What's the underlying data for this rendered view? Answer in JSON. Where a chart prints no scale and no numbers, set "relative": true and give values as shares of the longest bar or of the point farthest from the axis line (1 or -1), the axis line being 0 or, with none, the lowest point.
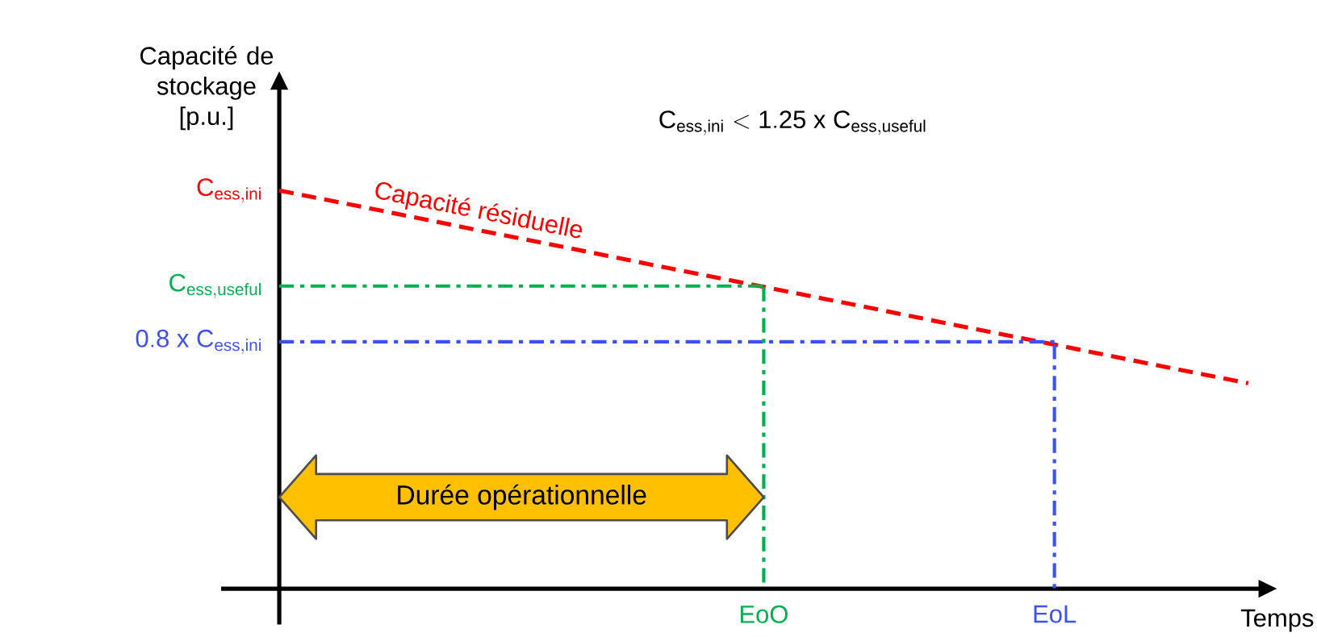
{
  "chart_data": {
    "type": "line",
    "relative": true,
    "title": "\\mathrm{C_{ess,ini} < 1.25\\ x\\ C_{ess,useful}}",
    "xlabel": "Temps",
    "ylabel": "Capacité de stockage [p.u.]",
    "categories": [
      null,
      null,
      null,
      null,
      null,
      "EoO",
      null,
      null,
      "EoL",
      null,
      null
    ],
    "series": [
      {
        "name": "Capacité résiduelle",
        "color": "#ff0000",
        "line_style": "dashed",
        "values": [
          1,
          0.952,
          0.903,
          0.855,
          0.806,
          0.758,
          0.71,
          0.661,
          0.613,
          0.564,
          0.516
        ]
      },
      {
        "color": "#00b050",
        "line_style": "dashdot",
        "values": [
          0.76,
          0.76,
          0.76,
          0.76,
          0.76,
          0.76,
          null,
          null,
          null,
          null,
          null
        ]
      },
      {
        "color": "#3c50ff",
        "line_style": "dashdot",
        "values": [
          0.62,
          0.62,
          0.62,
          0.62,
          0.62,
          0.62,
          0.62,
          0.62,
          0.62,
          null,
          null
        ]
      }
    ],
    "ref_lines": [
      {
        "axis": "x",
        "value": "EoO",
        "color": "#00b050",
        "line_style": "dashdot"
      },
      {
        "axis": "x",
        "value": "EoL",
        "color": "#3c50ff",
        "line_style": "dashdot"
      }
    ],
    "annotations": [
      "\\mathrm{C_{ess,ini}}",
      "\\mathrm{C_{ess,useful}}",
      "\\mathrm{0.8\\ x\\ C_{ess,ini}}",
      "Durée opérationnelle"
    ]
  }
}
